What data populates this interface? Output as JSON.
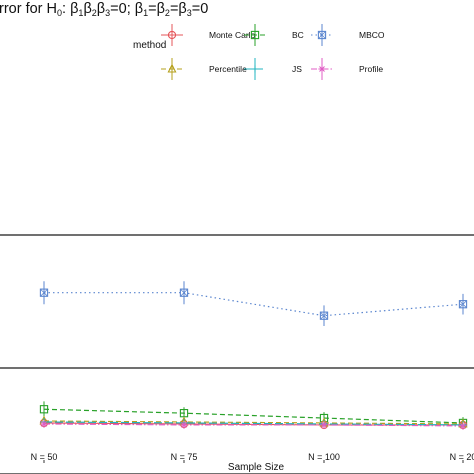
{
  "chart_data": {
    "type": "line",
    "title_parts": {
      "lead": "rror for H",
      "h_sub": "0",
      "mid1": ": β",
      "s1": "1",
      "b2": "β",
      "s2": "2",
      "b3": "β",
      "s3": "3",
      "mid2": "=0; β",
      "t1": "1",
      "eq1": "=β",
      "t2": "2",
      "eq2": "=β",
      "t3": "3",
      "end": "=0"
    },
    "xlabel": "Sample Size",
    "categories": [
      "N = 50",
      "N = 75",
      "N = 100",
      "N = 20"
    ],
    "legend": {
      "title": "method",
      "entries": [
        {
          "name": "Monte Carlo",
          "color": "#e5565a",
          "linestyle": "solid",
          "marker": "circle"
        },
        {
          "name": "BC",
          "color": "#28a128",
          "linestyle": "dashed",
          "marker": "square"
        },
        {
          "name": "MBCO",
          "color": "#5b86cf",
          "linestyle": "dotted",
          "marker": "square-x"
        },
        {
          "name": "Percentile",
          "color": "#b5a01c",
          "linestyle": "dashed",
          "marker": "triangle"
        },
        {
          "name": "JS",
          "color": "#22b5c0",
          "linestyle": "longdash",
          "marker": "plus"
        },
        {
          "name": "Profile",
          "color": "#e05cc4",
          "linestyle": "dashdot",
          "marker": "star"
        }
      ]
    },
    "panels": [
      {
        "name": "top",
        "series": []
      },
      {
        "name": "middle",
        "series": [
          {
            "name": "MBCO",
            "values": [
              0.62,
              0.62,
              0.42,
              0.52
            ],
            "err": [
              0.1,
              0.1,
              0.09,
              0.09
            ]
          }
        ]
      },
      {
        "name": "bottom",
        "series": [
          {
            "name": "BC",
            "values": [
              0.62,
              0.58,
              0.53,
              0.48
            ],
            "err": [
              0.08,
              0.06,
              0.06,
              0.06
            ]
          },
          {
            "name": "Monte Carlo",
            "values": [
              0.48,
              0.47,
              0.46,
              0.46
            ],
            "err": [
              0.04,
              0.04,
              0.04,
              0.04
            ]
          },
          {
            "name": "Percentile",
            "values": [
              0.5,
              0.49,
              0.48,
              0.47
            ],
            "err": [
              0.04,
              0.04,
              0.04,
              0.04
            ]
          },
          {
            "name": "JS",
            "values": [
              0.49,
              0.48,
              0.47,
              0.46
            ],
            "err": [
              0.04,
              0.04,
              0.04,
              0.04
            ]
          },
          {
            "name": "Profile",
            "values": [
              0.47,
              0.46,
              0.46,
              0.45
            ],
            "err": [
              0.04,
              0.04,
              0.04,
              0.04
            ]
          }
        ]
      }
    ]
  }
}
